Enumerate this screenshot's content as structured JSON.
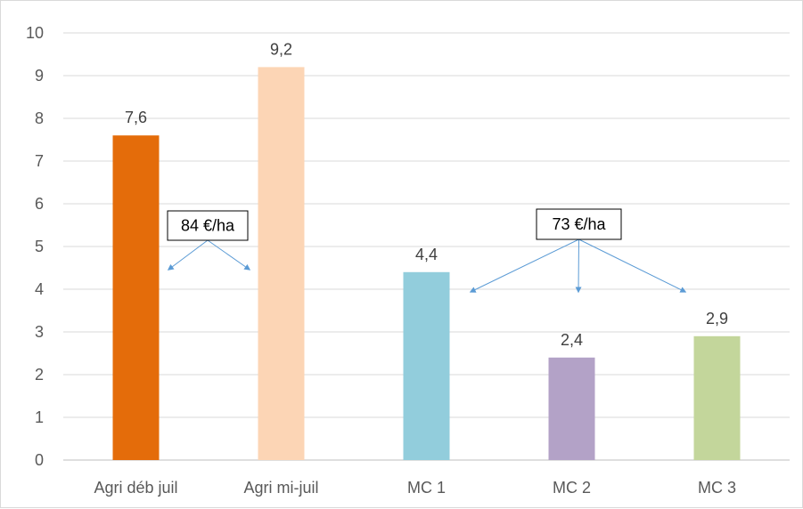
{
  "chart_data": {
    "type": "bar",
    "title": "",
    "xlabel": "",
    "ylabel": "",
    "categories": [
      "Agri déb juil",
      "Agri mi-juil",
      "MC 1",
      "MC 2",
      "MC 3"
    ],
    "values": [
      7.6,
      9.2,
      4.4,
      2.4,
      2.9
    ],
    "data_labels": [
      "7,6",
      "9,2",
      "4,4",
      "2,4",
      "2,9"
    ],
    "colors": [
      "#e46c0a",
      "#fcd5b5",
      "#92cddc",
      "#b3a2c7",
      "#c3d69b"
    ],
    "ylim": [
      0,
      10
    ],
    "yticks": [
      "0",
      "1",
      "2",
      "3",
      "4",
      "5",
      "6",
      "7",
      "8",
      "9",
      "10"
    ],
    "grid": true,
    "legend": "none",
    "annotations": [
      {
        "text": "84 €/ha",
        "targets": [
          "Agri déb juil",
          "Agri mi-juil"
        ]
      },
      {
        "text": "73 €/ha",
        "targets": [
          "MC 1",
          "MC 2",
          "MC 3"
        ]
      }
    ],
    "annotation_arrow_color": "#5b9bd5"
  }
}
